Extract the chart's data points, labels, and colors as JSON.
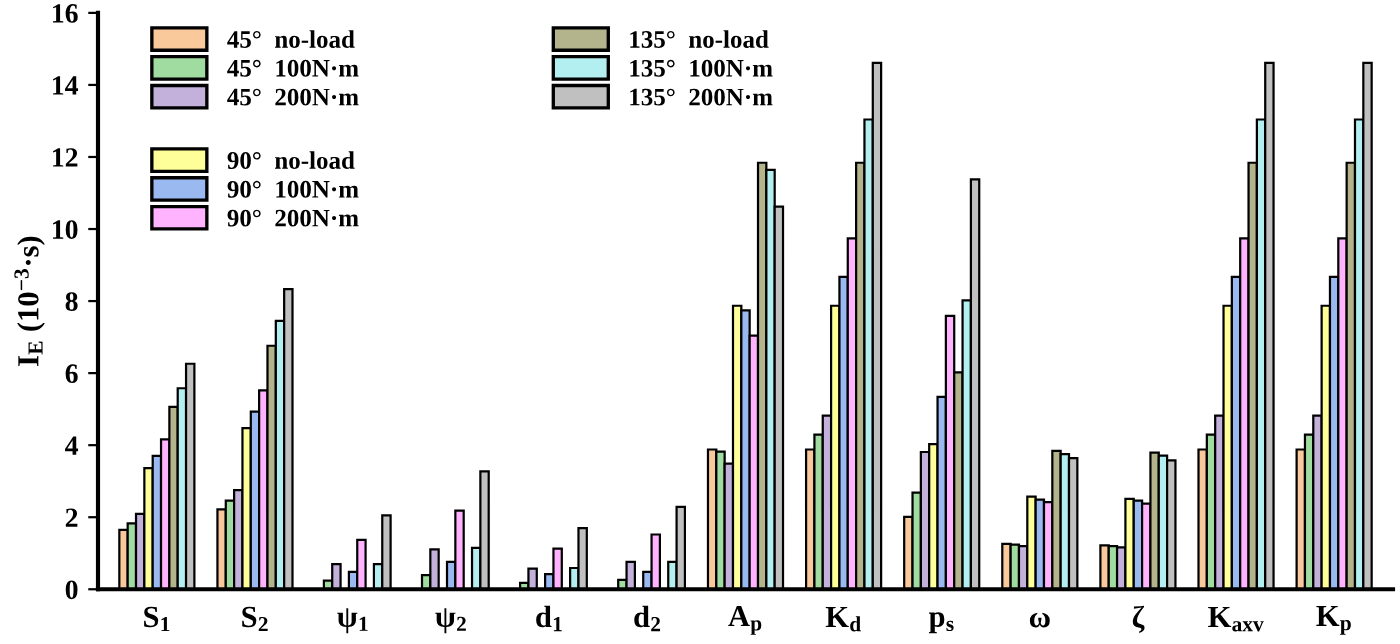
{
  "chart_data": {
    "type": "bar",
    "ylabel": "I$_{E}$ (10$^{−3}$·s)",
    "categories": [
      "S$_{1}$",
      "S$_{2}$",
      "ψ$_{1}$",
      "ψ$_{2}$",
      "d$_{1}$",
      "d$_{2}$",
      "A$_{p}$",
      "K$_{d}$",
      "p$_{s}$",
      "ω",
      "ζ",
      "K$_{axv}$",
      "K$_{p}$"
    ],
    "series": [
      {
        "name": "45°  no-load",
        "color": "#f9c89b",
        "values": [
          1.65,
          2.22,
          null,
          null,
          null,
          null,
          3.88,
          3.88,
          2.01,
          1.26,
          1.22,
          3.88,
          3.88
        ]
      },
      {
        "name": "45°  100N·m",
        "color": "#a0dba0",
        "values": [
          1.83,
          2.46,
          0.24,
          0.39,
          0.18,
          0.26,
          3.82,
          4.29,
          2.68,
          1.24,
          1.2,
          4.29,
          4.29
        ]
      },
      {
        "name": "45°  200N·m",
        "color": "#c3b1dc",
        "values": [
          2.09,
          2.75,
          0.7,
          1.11,
          0.57,
          0.76,
          3.49,
          4.82,
          3.81,
          1.2,
          1.16,
          4.82,
          4.82
        ]
      },
      {
        "name": "90°  no-load",
        "color": "#ffff99",
        "values": [
          3.36,
          4.47,
          null,
          null,
          null,
          null,
          7.87,
          7.87,
          4.03,
          2.57,
          2.51,
          7.87,
          7.87
        ]
      },
      {
        "name": "90°  100N·m",
        "color": "#99b9f0",
        "values": [
          3.7,
          4.93,
          0.48,
          0.76,
          0.42,
          0.48,
          7.74,
          8.67,
          5.34,
          2.49,
          2.46,
          8.67,
          8.67
        ]
      },
      {
        "name": "90°  200N·m",
        "color": "#ffb3ff",
        "values": [
          4.16,
          5.52,
          1.37,
          2.18,
          1.13,
          1.52,
          7.04,
          9.74,
          7.59,
          2.42,
          2.38,
          9.74,
          9.74
        ]
      },
      {
        "name": "135°  no-load",
        "color": "#b3b38c",
        "values": [
          5.06,
          6.76,
          null,
          null,
          null,
          null,
          11.84,
          11.84,
          6.02,
          3.84,
          3.79,
          11.84,
          11.84
        ]
      },
      {
        "name": "135°  100N·m",
        "color": "#b3eef0",
        "values": [
          5.58,
          7.45,
          0.7,
          1.15,
          0.59,
          0.76,
          11.64,
          13.04,
          8.02,
          3.75,
          3.71,
          13.04,
          13.04
        ]
      },
      {
        "name": "135°  200N·m",
        "color": "#c0c0c0",
        "values": [
          6.26,
          8.33,
          2.05,
          3.27,
          1.7,
          2.29,
          10.62,
          14.61,
          11.38,
          3.64,
          3.58,
          14.61,
          14.61
        ]
      }
    ],
    "ylim": [
      0,
      16
    ],
    "yticks": [
      0,
      2,
      4,
      6,
      8,
      10,
      12,
      14,
      16
    ],
    "grid": false,
    "legend": "top left"
  }
}
